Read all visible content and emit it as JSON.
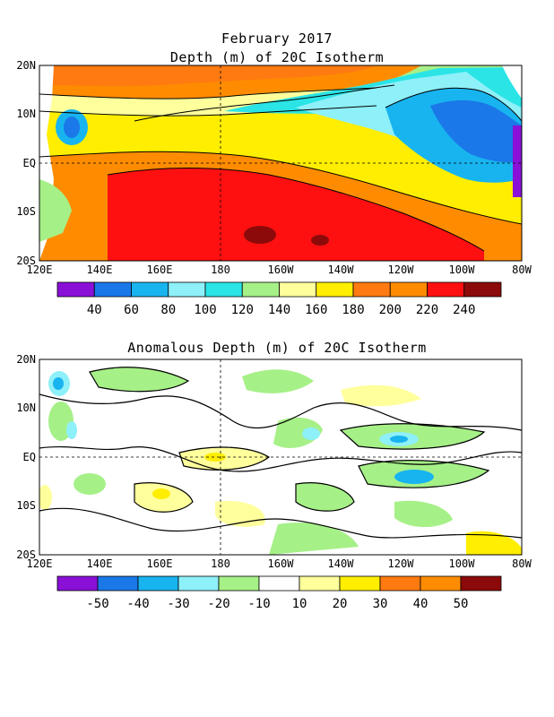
{
  "header": {
    "date": "February 2017",
    "map1_title": "Depth (m) of 20C Isotherm",
    "map2_title": "Anomalous Depth (m) of 20C Isotherm"
  },
  "axes": {
    "lat_labels": [
      "20N",
      "10N",
      "EQ",
      "10S",
      "20S"
    ],
    "lon_labels": [
      "120E",
      "140E",
      "160E",
      "180",
      "160W",
      "140W",
      "120W",
      "100W",
      "80W"
    ]
  },
  "colorbar1": {
    "labels": [
      "40",
      "60",
      "80",
      "100",
      "120",
      "140",
      "160",
      "180",
      "200",
      "220",
      "240"
    ],
    "colors": [
      "#8a10d8",
      "#1a78e8",
      "#18b4f0",
      "#8ef0f8",
      "#2ae4e6",
      "#a6f088",
      "#ffff9c",
      "#ffee00",
      "#ff7a10",
      "#ff8c00",
      "#ff1010",
      "#8c0a0a"
    ]
  },
  "colorbar2": {
    "labels": [
      "-50",
      "-40",
      "-30",
      "-20",
      "-10",
      "10",
      "20",
      "30",
      "40",
      "50"
    ],
    "colors": [
      "#8a10d8",
      "#1a78e8",
      "#18b4f0",
      "#8ef0f8",
      "#a6f088",
      "#ffffff",
      "#ffff9c",
      "#ffee00",
      "#ff7a10",
      "#ff8c00",
      "#8c0a0a"
    ]
  }
}
